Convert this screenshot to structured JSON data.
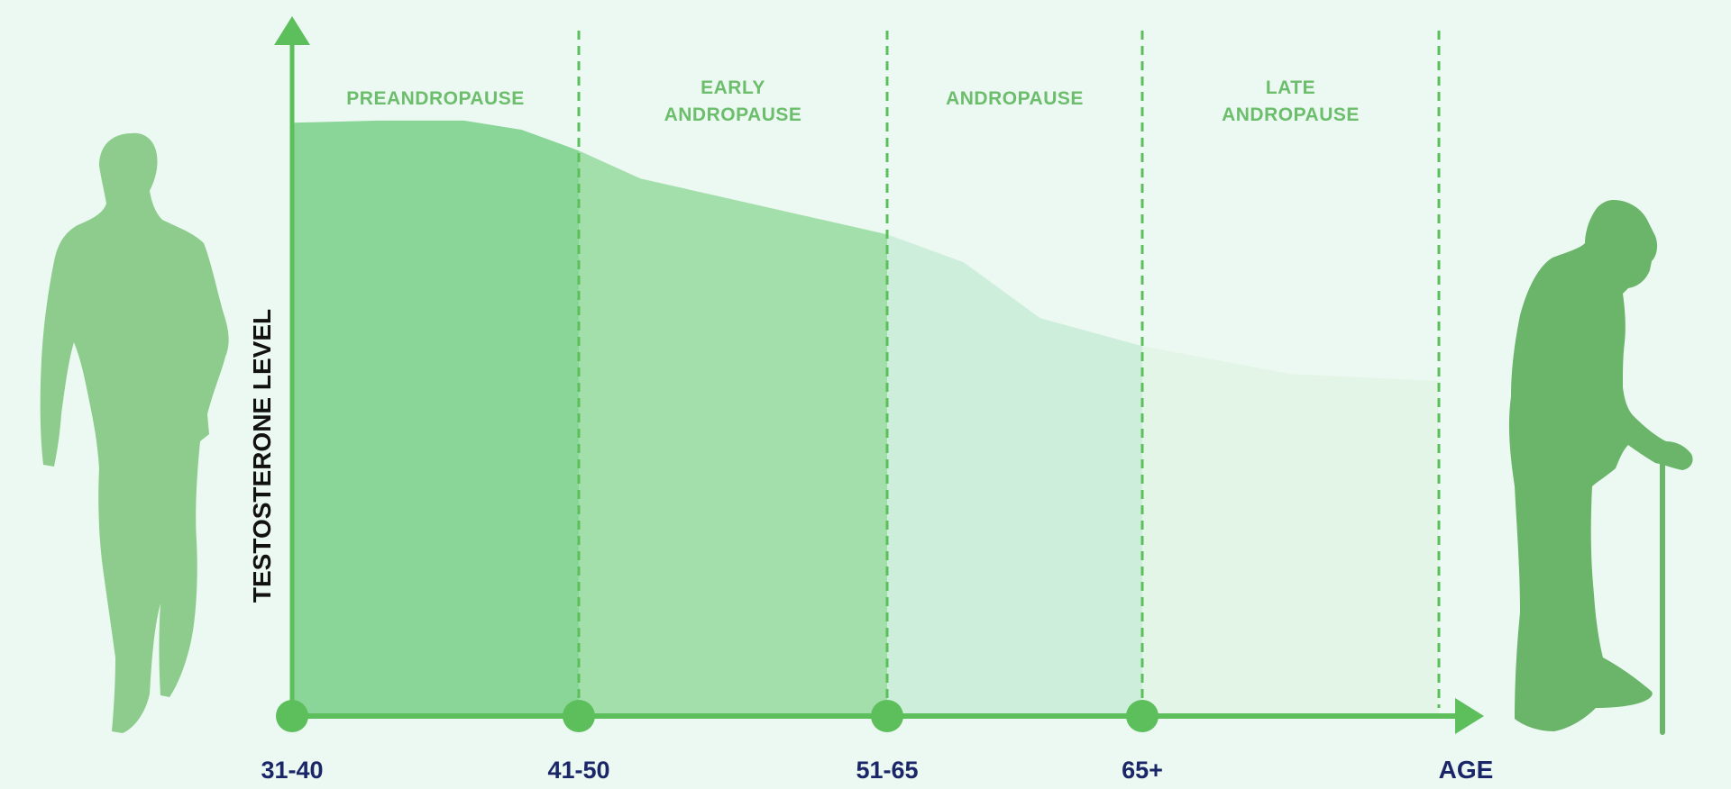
{
  "chart_data": {
    "type": "area",
    "ylabel": "TESTOSTERONE LEVEL",
    "xlabel": "AGE",
    "ylim": [
      0,
      100
    ],
    "grid": false,
    "categories": [
      "31-40",
      "41-50",
      "51-65",
      "65+"
    ],
    "phases": [
      {
        "lines": [
          "PREANDROPAUSE"
        ]
      },
      {
        "lines": [
          "EARLY",
          "ANDROPAUSE"
        ]
      },
      {
        "lines": [
          "ANDROPAUSE"
        ]
      },
      {
        "lines": [
          "LATE",
          "ANDROPAUSE"
        ]
      }
    ],
    "curve": {
      "x": [
        0,
        0.3,
        0.6,
        0.8,
        1.0,
        1.2,
        1.5,
        1.8,
        2.0,
        2.3,
        2.6,
        3.0,
        3.5,
        4.0
      ],
      "y": [
        85,
        85.3,
        85.3,
        84,
        81,
        77,
        74,
        71,
        69,
        65,
        57,
        53,
        49,
        48
      ]
    },
    "colors": {
      "background": "#ecf9f2",
      "axis": "#5cbf5c",
      "tick_text": "#1a2668",
      "phase_text": "#6cbd6c",
      "axis_title": "#111111",
      "fills": [
        "#8ad698",
        "#a3dfaa",
        "#cdeedb",
        "#e2f5e6"
      ],
      "young_man": "#8dcc8d",
      "old_man": "#6ab56a"
    },
    "icons": {
      "left": "young-man-silhouette-icon",
      "right": "elderly-man-with-cane-silhouette-icon"
    }
  }
}
